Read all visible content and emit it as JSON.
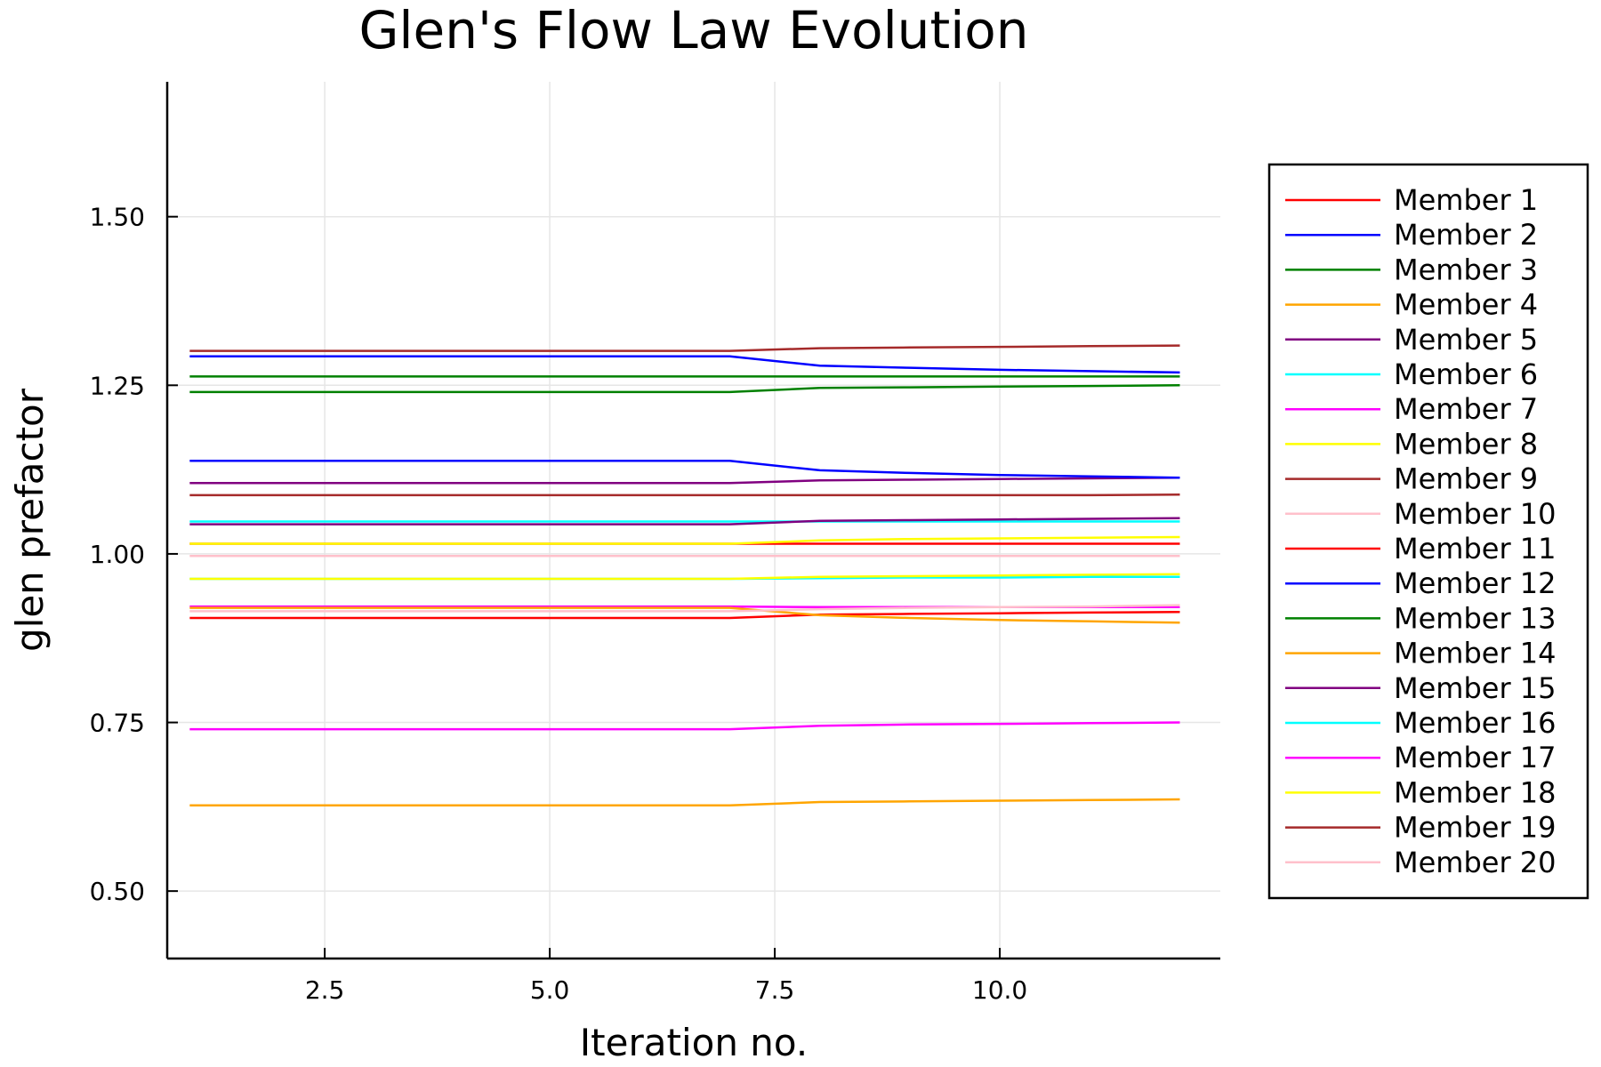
{
  "chart_data": {
    "type": "line",
    "title": "Glen's Flow Law Evolution",
    "xlabel": "Iteration no.",
    "ylabel": "glen prefactor",
    "xlim": [
      0.75,
      12.45
    ],
    "ylim": [
      0.4,
      1.7
    ],
    "xticks": [
      2.5,
      5.0,
      7.5,
      10.0
    ],
    "xtick_labels": [
      "2.5",
      "5.0",
      "7.5",
      "10.0"
    ],
    "yticks": [
      0.5,
      0.75,
      1.0,
      1.25,
      1.5
    ],
    "ytick_labels": [
      "0.50",
      "0.75",
      "1.00",
      "1.25",
      "1.50"
    ],
    "grid": true,
    "legend_position": "outside-right",
    "x": [
      1,
      2,
      3,
      4,
      5,
      6,
      7,
      8,
      9,
      10,
      11,
      12
    ],
    "series": [
      {
        "name": "Member 1",
        "color": "#ff0000",
        "values": [
          1.015,
          1.015,
          1.015,
          1.015,
          1.015,
          1.015,
          1.015,
          1.015,
          1.015,
          1.015,
          1.015,
          1.015
        ]
      },
      {
        "name": "Member 2",
        "color": "#0000ff",
        "values": [
          1.293,
          1.293,
          1.293,
          1.293,
          1.293,
          1.293,
          1.293,
          1.279,
          1.276,
          1.273,
          1.271,
          1.269
        ]
      },
      {
        "name": "Member 3",
        "color": "#008000",
        "values": [
          1.263,
          1.263,
          1.263,
          1.263,
          1.263,
          1.263,
          1.263,
          1.263,
          1.263,
          1.263,
          1.263,
          1.263
        ]
      },
      {
        "name": "Member 4",
        "color": "#ffa500",
        "values": [
          0.627,
          0.627,
          0.627,
          0.627,
          0.627,
          0.627,
          0.627,
          0.632,
          0.633,
          0.634,
          0.635,
          0.636
        ]
      },
      {
        "name": "Member 5",
        "color": "#800080",
        "values": [
          1.105,
          1.105,
          1.105,
          1.105,
          1.105,
          1.105,
          1.105,
          1.109,
          1.11,
          1.111,
          1.112,
          1.113
        ]
      },
      {
        "name": "Member 6",
        "color": "#00ffff",
        "values": [
          1.048,
          1.048,
          1.048,
          1.048,
          1.048,
          1.048,
          1.048,
          1.048,
          1.048,
          1.048,
          1.048,
          1.048
        ]
      },
      {
        "name": "Member 7",
        "color": "#ff00ff",
        "values": [
          0.922,
          0.922,
          0.922,
          0.922,
          0.922,
          0.922,
          0.922,
          0.921,
          0.921,
          0.921,
          0.921,
          0.921
        ]
      },
      {
        "name": "Member 8",
        "color": "#ffff00",
        "values": [
          1.015,
          1.015,
          1.015,
          1.015,
          1.015,
          1.015,
          1.015,
          1.02,
          1.022,
          1.023,
          1.024,
          1.025
        ]
      },
      {
        "name": "Member 9",
        "color": "#a52a2a",
        "values": [
          1.087,
          1.087,
          1.087,
          1.087,
          1.087,
          1.087,
          1.087,
          1.087,
          1.087,
          1.087,
          1.087,
          1.088
        ]
      },
      {
        "name": "Member 10",
        "color": "#ffc0cb",
        "values": [
          0.997,
          0.997,
          0.997,
          0.997,
          0.997,
          0.997,
          0.997,
          0.997,
          0.997,
          0.997,
          0.997,
          0.997
        ]
      },
      {
        "name": "Member 11",
        "color": "#ff0000",
        "values": [
          0.905,
          0.905,
          0.905,
          0.905,
          0.905,
          0.905,
          0.905,
          0.91,
          0.911,
          0.912,
          0.913,
          0.914
        ]
      },
      {
        "name": "Member 12",
        "color": "#0000ff",
        "values": [
          1.138,
          1.138,
          1.138,
          1.138,
          1.138,
          1.138,
          1.138,
          1.124,
          1.12,
          1.117,
          1.115,
          1.113
        ]
      },
      {
        "name": "Member 13",
        "color": "#008000",
        "values": [
          1.24,
          1.24,
          1.24,
          1.24,
          1.24,
          1.24,
          1.24,
          1.246,
          1.247,
          1.248,
          1.249,
          1.25
        ]
      },
      {
        "name": "Member 14",
        "color": "#ffa500",
        "values": [
          0.92,
          0.92,
          0.92,
          0.92,
          0.92,
          0.92,
          0.92,
          0.909,
          0.905,
          0.902,
          0.9,
          0.898
        ]
      },
      {
        "name": "Member 15",
        "color": "#800080",
        "values": [
          1.044,
          1.044,
          1.044,
          1.044,
          1.044,
          1.044,
          1.044,
          1.049,
          1.05,
          1.051,
          1.052,
          1.053
        ]
      },
      {
        "name": "Member 16",
        "color": "#00ffff",
        "values": [
          0.963,
          0.963,
          0.963,
          0.963,
          0.963,
          0.963,
          0.963,
          0.964,
          0.965,
          0.965,
          0.966,
          0.966
        ]
      },
      {
        "name": "Member 17",
        "color": "#ff00ff",
        "values": [
          0.74,
          0.74,
          0.74,
          0.74,
          0.74,
          0.74,
          0.74,
          0.745,
          0.747,
          0.748,
          0.749,
          0.75
        ]
      },
      {
        "name": "Member 18",
        "color": "#ffff00",
        "values": [
          0.963,
          0.963,
          0.963,
          0.963,
          0.963,
          0.963,
          0.963,
          0.966,
          0.967,
          0.968,
          0.969,
          0.97
        ]
      },
      {
        "name": "Member 19",
        "color": "#a52a2a",
        "values": [
          1.301,
          1.301,
          1.301,
          1.301,
          1.301,
          1.301,
          1.301,
          1.305,
          1.306,
          1.307,
          1.308,
          1.309
        ]
      },
      {
        "name": "Member 20",
        "color": "#ffc0cb",
        "values": [
          0.915,
          0.915,
          0.915,
          0.915,
          0.915,
          0.915,
          0.915,
          0.918,
          0.92,
          0.921,
          0.922,
          0.924
        ]
      }
    ]
  }
}
